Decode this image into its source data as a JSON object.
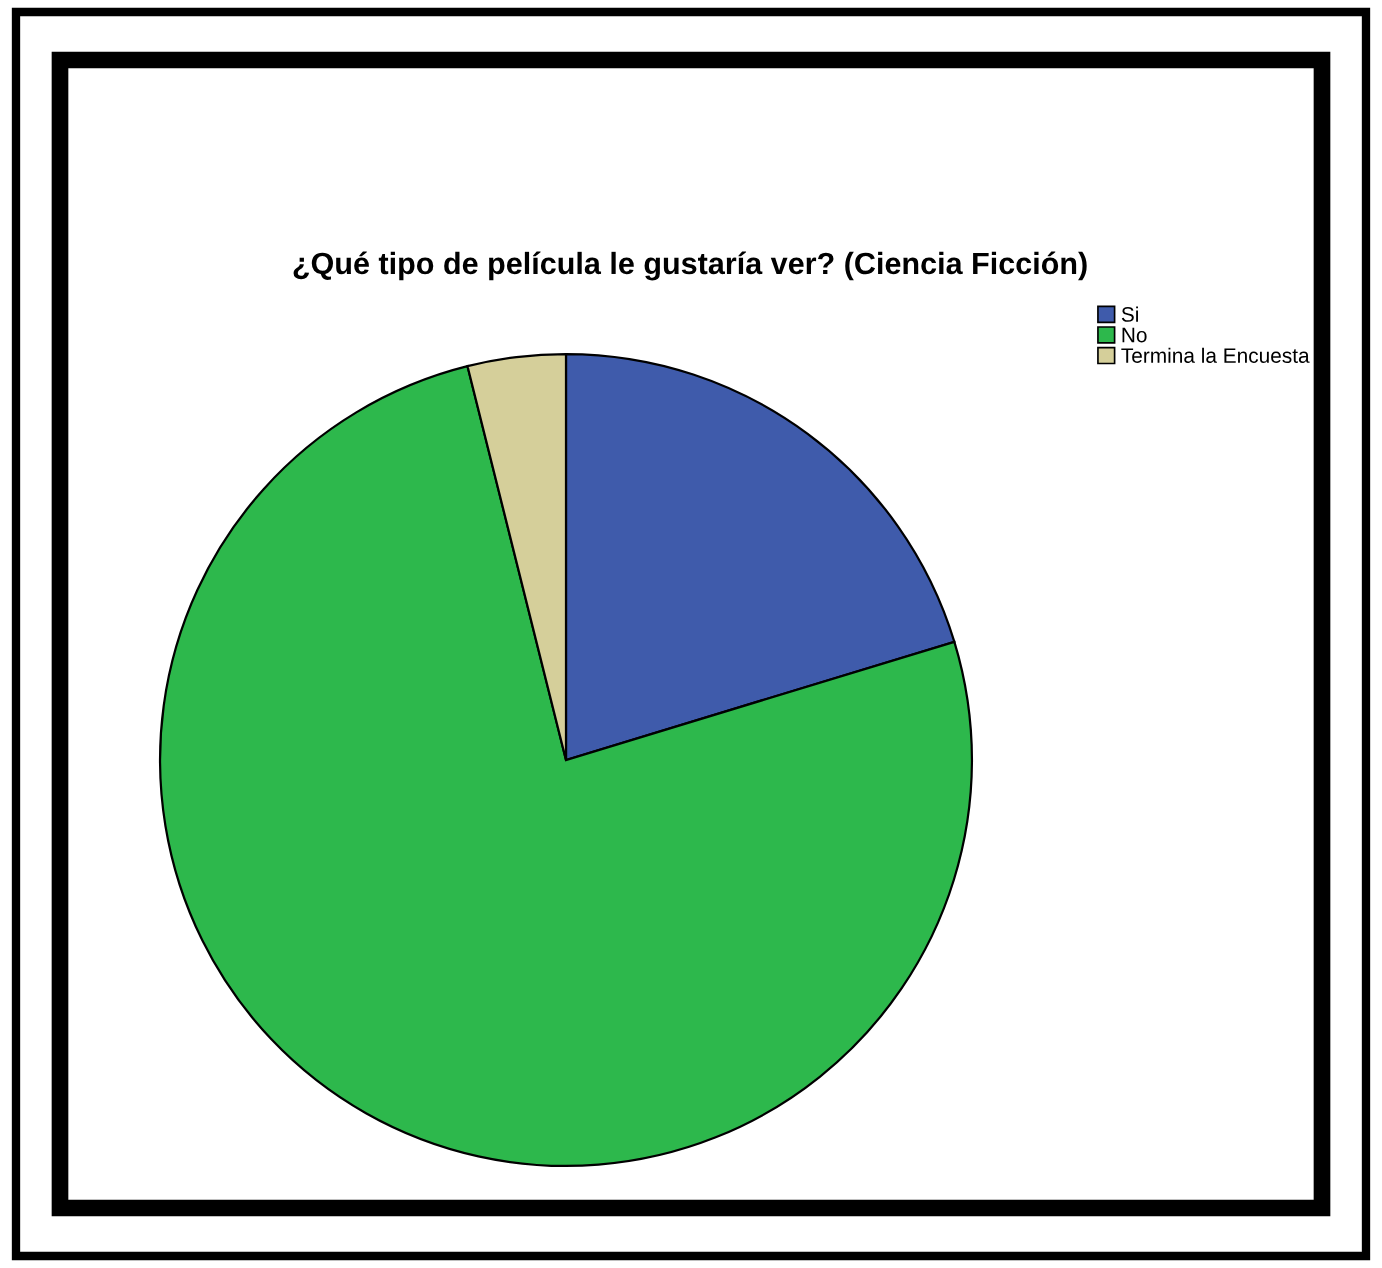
{
  "chart_data": {
    "type": "pie",
    "title": "¿Qué tipo de película le gustaría ver? (Ciencia Ficción)",
    "categories": [
      "Si",
      "No",
      "Termina la Encuesta"
    ],
    "values": [
      20.3,
      75.8,
      3.9
    ],
    "colors": [
      "#3f5bab",
      "#2db84c",
      "#d5cf9a"
    ],
    "legend": "top right"
  }
}
